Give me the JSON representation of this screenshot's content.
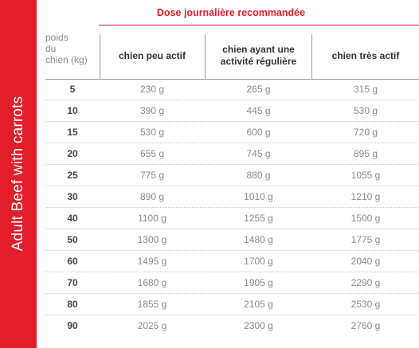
{
  "side": {
    "title": "Adult Beef with carrots",
    "color": "#e41d2b"
  },
  "table": {
    "heading": "Dose journalière recommandée",
    "header": {
      "weight": "poids\ndu\nchien (kg)",
      "col1": "chien peu actif",
      "col2": "chien ayant une activité régulière",
      "col3": "chien très actif"
    },
    "rows": [
      {
        "weight": "5",
        "low": "230 g",
        "regular": "265 g",
        "high": "315 g"
      },
      {
        "weight": "10",
        "low": "390 g",
        "regular": "445 g",
        "high": "530 g"
      },
      {
        "weight": "15",
        "low": "530 g",
        "regular": "600 g",
        "high": "720 g"
      },
      {
        "weight": "20",
        "low": "655 g",
        "regular": "745 g",
        "high": "895 g"
      },
      {
        "weight": "25",
        "low": "775 g",
        "regular": "880 g",
        "high": "1055 g"
      },
      {
        "weight": "30",
        "low": "890 g",
        "regular": "1010 g",
        "high": "1210 g"
      },
      {
        "weight": "40",
        "low": "1100 g",
        "regular": "1255 g",
        "high": "1500 g"
      },
      {
        "weight": "50",
        "low": "1300 g",
        "regular": "1480 g",
        "high": "1775 g"
      },
      {
        "weight": "60",
        "low": "1495 g",
        "regular": "1700 g",
        "high": "2040 g"
      },
      {
        "weight": "70",
        "low": "1680 g",
        "regular": "1905 g",
        "high": "2290 g"
      },
      {
        "weight": "80",
        "low": "1855 g",
        "regular": "2105 g",
        "high": "2530 g"
      },
      {
        "weight": "90",
        "low": "2025 g",
        "regular": "2300 g",
        "high": "2760 g"
      }
    ]
  }
}
